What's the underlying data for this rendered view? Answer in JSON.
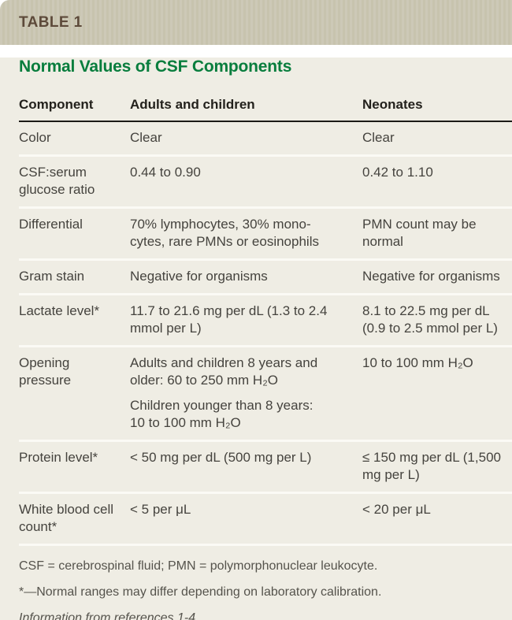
{
  "header": {
    "tag": "TABLE 1"
  },
  "title": "Normal Values of CSF Components",
  "table": {
    "columns": [
      "Component",
      "Adults and children",
      "Neonates"
    ],
    "rows": [
      {
        "component": "Color",
        "adults": [
          "Clear"
        ],
        "neonates": [
          "Clear"
        ]
      },
      {
        "component": "CSF:serum glucose ratio",
        "adults": [
          "0.44 to 0.90"
        ],
        "neonates": [
          "0.42 to 1.10"
        ]
      },
      {
        "component": "Differential",
        "adults": [
          "70% lymphocytes, 30% mono­cytes, rare PMNs or eosinophils"
        ],
        "neonates": [
          "PMN count may be normal"
        ]
      },
      {
        "component": "Gram stain",
        "adults": [
          "Negative for organisms"
        ],
        "neonates": [
          "Negative for organisms"
        ]
      },
      {
        "component": "Lactate level*",
        "adults": [
          "11.7 to 21.6 mg per dL (1.3 to 2.4 mmol per L)"
        ],
        "neonates": [
          "8.1 to 22.5 mg per dL (0.9 to 2.5 mmol per L)"
        ]
      },
      {
        "component": "Opening pressure",
        "adults": [
          "Adults and children 8 years and older: 60 to 250 mm H₂O",
          "Children younger than 8 years: 10 to 100 mm H₂O"
        ],
        "neonates": [
          "10 to 100 mm H₂O"
        ]
      },
      {
        "component": "Protein level*",
        "adults": [
          "< 50 mg per dL (500 mg per L)"
        ],
        "neonates": [
          "≤ 150 mg per dL (1,500 mg per L)"
        ]
      },
      {
        "component": "White blood cell count*",
        "adults": [
          "< 5 per μL"
        ],
        "neonates": [
          "< 20 per μL"
        ]
      }
    ]
  },
  "footnotes": {
    "abbreviations": "CSF = cerebrospinal fluid; PMN = polymorphonuclear leukocyte.",
    "asterisk": "*—Normal ranges may differ depending on laboratory calibration.",
    "source": "Information from references 1-4."
  },
  "colors": {
    "tag_bar_bg": "#c7c3ae",
    "tag_bar_stripe": "#cdc9b7",
    "tag_text": "#5d4a3a",
    "panel_bg": "#efede4",
    "title_green": "#087d3d",
    "header_text": "#23211c",
    "body_text": "#45433e",
    "rule_black": "#1b1a16",
    "separator_white": "#fbfaf5",
    "footnote_text": "#55534c"
  }
}
